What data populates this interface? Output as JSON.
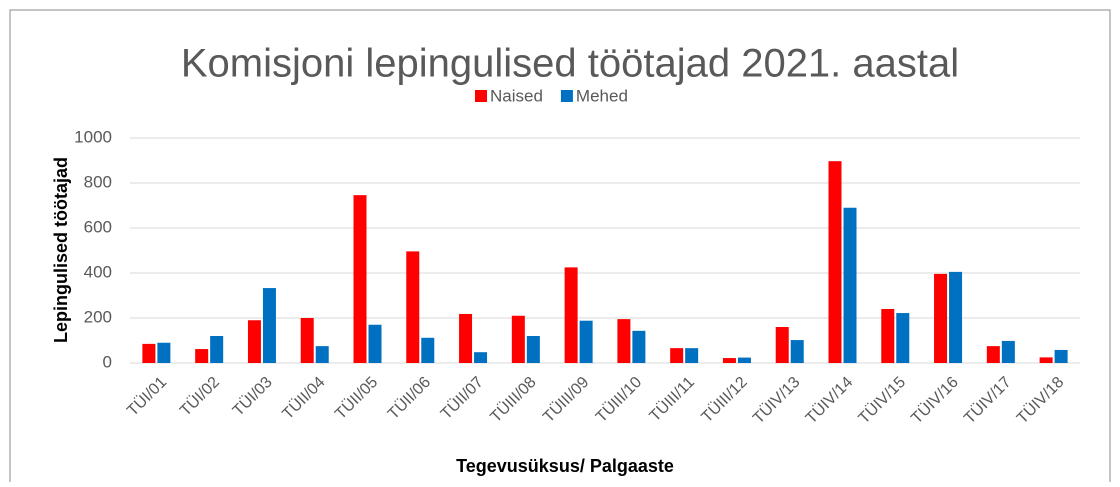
{
  "chart_data": {
    "type": "bar",
    "title": "Komisjoni lepingulised töötajad 2021. aastal",
    "x_label": "Tegevusüksus/ Palgaaste",
    "y_label": "Lepingulised töötajad",
    "categories": [
      "TÜI/01",
      "TÜI/02",
      "TÜI/03",
      "TÜII/04",
      "TÜII/05",
      "TÜII/06",
      "TÜII/07",
      "TÜIII/08",
      "TÜIII/09",
      "TÜIII/10",
      "TÜIII/11",
      "TÜIII/12",
      "TÜIV/13",
      "TÜIV/14",
      "TÜIV/15",
      "TÜIV/16",
      "TÜIV/17",
      "TÜIV/18"
    ],
    "series": [
      {
        "name": "Naised",
        "color": "#ff0000",
        "values": [
          85,
          62,
          190,
          200,
          746,
          496,
          218,
          210,
          425,
          195,
          66,
          22,
          160,
          897,
          240,
          396,
          75,
          25
        ]
      },
      {
        "name": "Mehed",
        "color": "#0070c0",
        "values": [
          90,
          120,
          333,
          75,
          170,
          112,
          48,
          120,
          188,
          143,
          66,
          24,
          102,
          690,
          222,
          405,
          98,
          58
        ]
      }
    ],
    "ylim": [
      0,
      1000
    ],
    "yticks": [
      0,
      200,
      400,
      600,
      800,
      1000
    ],
    "grid": true,
    "legend": "top"
  }
}
